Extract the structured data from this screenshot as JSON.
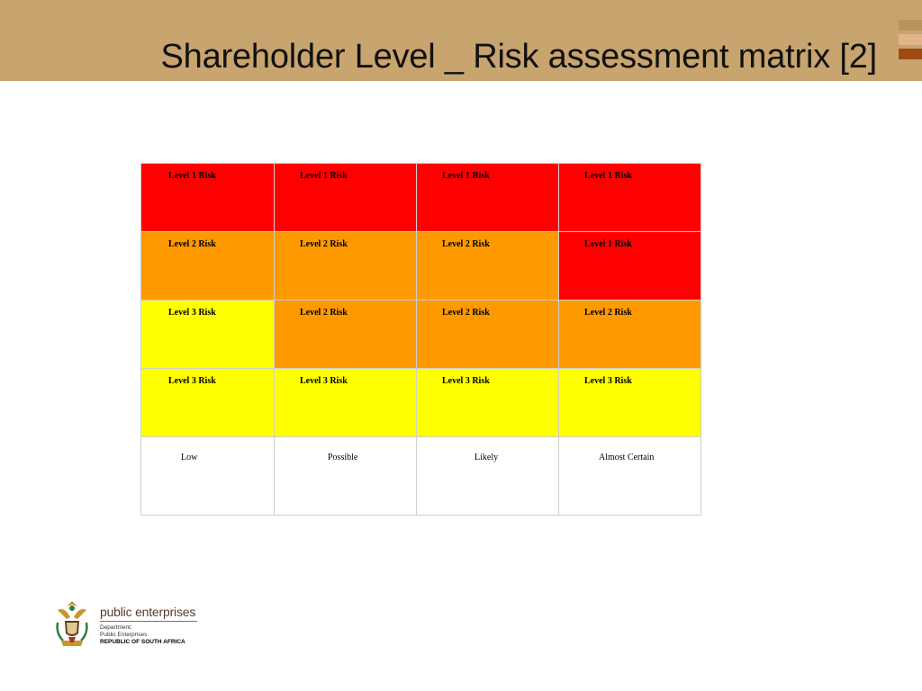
{
  "slide": {
    "title": "Shareholder Level _ Risk assessment matrix [2]"
  },
  "matrix": {
    "rows": [
      [
        "Level 1 Risk",
        "Level 1 Risk",
        "Level 1 Risk",
        "Level 1 Risk"
      ],
      [
        "Level 2 Risk",
        "Level 2 Risk",
        "Level 2 Risk",
        "Level 1 Risk"
      ],
      [
        "Level 3 Risk",
        "Level 2 Risk",
        "Level 2 Risk",
        "Level 2 Risk"
      ],
      [
        "Level 3 Risk",
        "Level 3 Risk",
        "Level 3 Risk",
        "Level 3 Risk"
      ]
    ],
    "likelihood_labels": [
      "Low",
      "Possible",
      "Likely",
      "Almost Certain"
    ],
    "colors": {
      "level_1": "#ff0000",
      "level_2": "#ff9900",
      "level_3": "#ffff00"
    }
  },
  "footer": {
    "brand_name": "public enterprises",
    "line1": "Department:",
    "line2": "Public Enterprises",
    "line3": "REPUBLIC OF SOUTH AFRICA",
    "logo_icon": "coat-of-arms-icon"
  }
}
